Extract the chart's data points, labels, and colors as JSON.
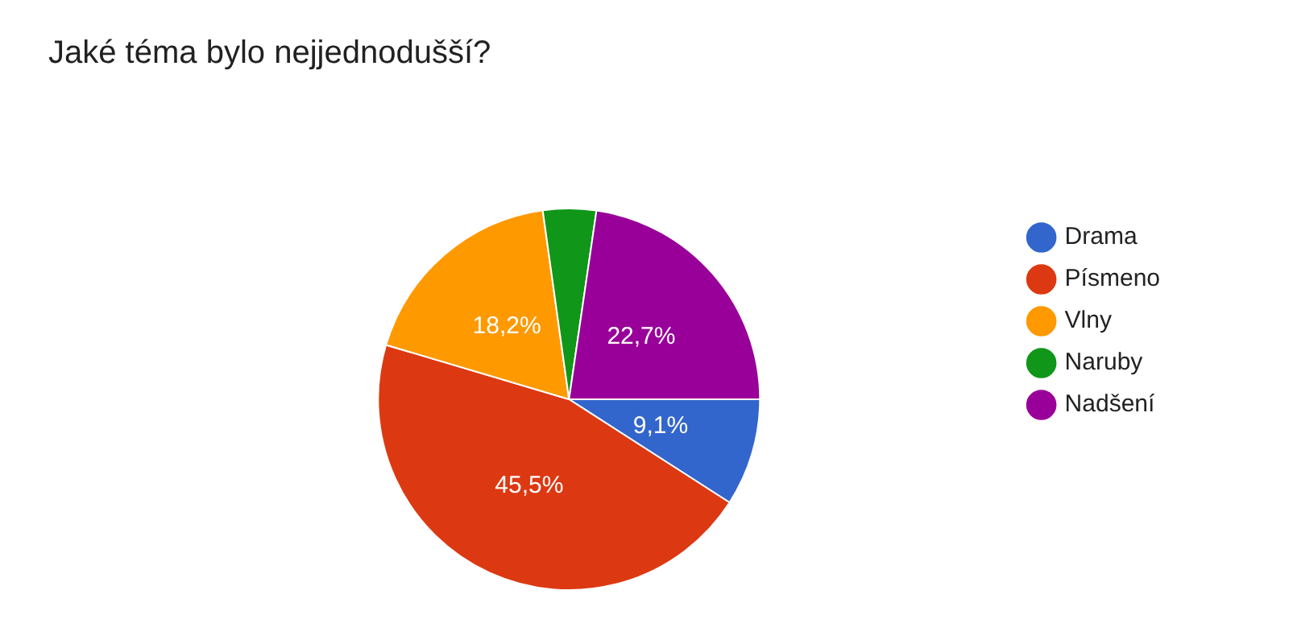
{
  "chart_data": {
    "type": "pie",
    "title": "Jaké téma bylo nejjednodušší?",
    "categories": [
      "Drama",
      "Písmeno",
      "Vlny",
      "Naruby",
      "Nadšení"
    ],
    "values": [
      9.1,
      45.5,
      18.2,
      4.5,
      22.7
    ],
    "colors": [
      "#3366cc",
      "#dc3912",
      "#ff9900",
      "#109618",
      "#990099"
    ],
    "value_labels": [
      "9,1%",
      "45,5%",
      "18,2%",
      null,
      "22,7%"
    ],
    "legend": "right"
  }
}
